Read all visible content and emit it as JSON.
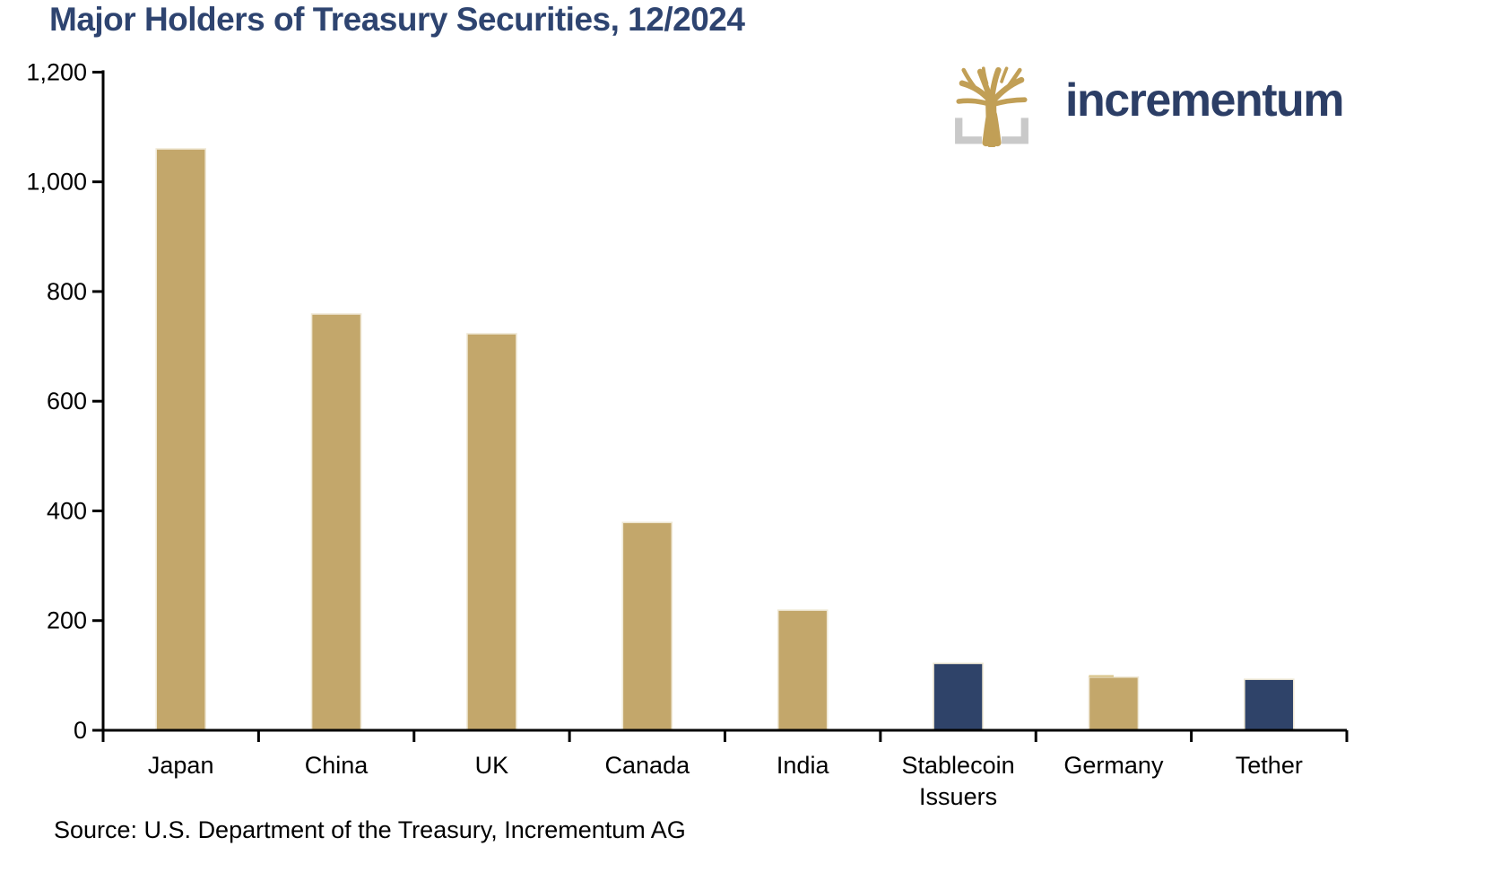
{
  "header": {
    "title": "Major Holders of Treasury Securities, 12/2024",
    "title_color": "#2E4470"
  },
  "logo": {
    "text": "incrementum",
    "text_color": "#2C3E66",
    "tree_color": "#C19F56",
    "bracket_color": "#C9C9C9"
  },
  "source": {
    "text": "Source: U.S. Department of the Treasury, Incrementum AG"
  },
  "chart_data": {
    "type": "bar",
    "title": "Major Holders of Treasury Securities, 12/2024",
    "categories": [
      "Japan",
      "China",
      "UK",
      "Canada",
      "India",
      "Stablecoin\nIssuers",
      "Germany",
      "Tether"
    ],
    "values": [
      1060,
      759,
      723,
      379,
      219,
      122,
      97,
      93
    ],
    "bar_colors": [
      "#C3A76B",
      "#C3A76B",
      "#C3A76B",
      "#C3A76B",
      "#C3A76B",
      "#2F4369",
      "#C3A76B",
      "#2F4369"
    ],
    "xlabel": "",
    "ylabel": "",
    "ylim": [
      0,
      1200
    ],
    "ytick_values": [
      0,
      200,
      400,
      600,
      800,
      1000,
      1200
    ],
    "ytick_labels": [
      "0",
      "200",
      "400",
      "600",
      "800",
      "1,000",
      "1,200"
    ],
    "grid": false,
    "legend": "none",
    "axis_color": "#000000",
    "tick_label_color": "#000000",
    "bar_edge_color": "#EFE8D5",
    "highlight_cap": {
      "index": 6,
      "color": "#D9C489"
    }
  }
}
